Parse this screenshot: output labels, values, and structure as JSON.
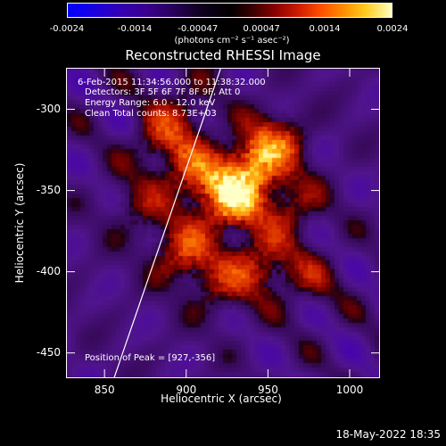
{
  "colorbar": {
    "ticks": [
      "-0.0024",
      "-0.0014",
      "-0.00047",
      "0.00047",
      "0.0014",
      "0.0024"
    ],
    "unit_label": "(photons cm⁻² s⁻¹ asec⁻²)",
    "range": [
      -0.0024,
      0.0024
    ]
  },
  "chart_data": {
    "type": "heatmap",
    "title": "Reconstructed RHESSI Image",
    "xlabel": "Heliocentric X (arcsec)",
    "ylabel": "Heliocentric Y (arcsec)",
    "xlim": [
      827,
      1018
    ],
    "ylim": [
      -465,
      -275
    ],
    "x_ticks": [
      "850",
      "900",
      "950",
      "1000"
    ],
    "y_ticks": [
      "-300",
      "-350",
      "-400",
      "-450"
    ],
    "x_tick_values": [
      850,
      900,
      950,
      1000
    ],
    "y_tick_values": [
      -300,
      -350,
      -400,
      -450
    ],
    "annotations": {
      "time_range": "6-Feb-2015 11:34:56.000 to 11:38:32.000",
      "detectors": "Detectors: 3F 5F 6F 7F 8F 9F, Att 0",
      "energy": "Energy Range: 6.0 - 12.0 keV",
      "clean": "Clean     Total counts: 8.73E+03",
      "peak": "Position of Peak = [927,-356]"
    },
    "peak": [
      927,
      -356
    ],
    "limb_line": [
      [
        856,
        -465
      ],
      [
        921,
        -275
      ]
    ],
    "sources": [
      {
        "x": 927,
        "y": -356,
        "intensity": 1.0
      },
      {
        "x": 940,
        "y": -335,
        "intensity": 0.75
      },
      {
        "x": 905,
        "y": -340,
        "intensity": 0.55
      },
      {
        "x": 898,
        "y": -388,
        "intensity": 0.6
      },
      {
        "x": 955,
        "y": -320,
        "intensity": 0.55
      },
      {
        "x": 945,
        "y": -395,
        "intensity": 0.55
      },
      {
        "x": 885,
        "y": -320,
        "intensity": 0.45
      },
      {
        "x": 965,
        "y": -360,
        "intensity": 0.4
      },
      {
        "x": 920,
        "y": -410,
        "intensity": 0.35
      },
      {
        "x": 975,
        "y": -405,
        "intensity": 0.3
      },
      {
        "x": 870,
        "y": -360,
        "intensity": 0.3
      },
      {
        "x": 900,
        "y": -300,
        "intensity": 0.3
      }
    ]
  },
  "footer": {
    "timestamp": "18-May-2022 18:35"
  }
}
